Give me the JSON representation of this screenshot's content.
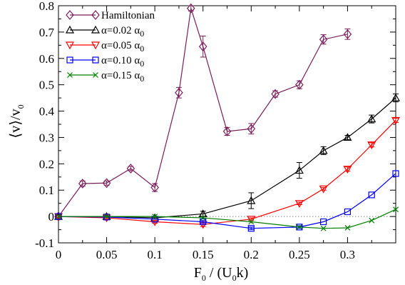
{
  "chart_data": {
    "type": "line",
    "xlabel": "F",
    "xlabel_sub": "0",
    "xlabel_tail": " / (U",
    "xlabel_sub2": "0",
    "xlabel_end": "k)",
    "ylabel_pre": "⟨v⟩/v",
    "ylabel_sub": "0",
    "xlim": [
      0,
      0.35
    ],
    "ylim": [
      -0.1,
      0.8
    ],
    "x_ticks": [
      {
        "v": 0,
        "label": "0"
      },
      {
        "v": 0.05,
        "label": "0.05"
      },
      {
        "v": 0.1,
        "label": "0.1"
      },
      {
        "v": 0.15,
        "label": "0.15"
      },
      {
        "v": 0.2,
        "label": "0.2"
      },
      {
        "v": 0.25,
        "label": "0.25"
      },
      {
        "v": 0.3,
        "label": "0.3"
      }
    ],
    "y_ticks": [
      {
        "v": -0.1,
        "label": "-0.1"
      },
      {
        "v": 0,
        "label": "0"
      },
      {
        "v": 0.1,
        "label": "0.1"
      },
      {
        "v": 0.2,
        "label": "0.2"
      },
      {
        "v": 0.3,
        "label": "0.3"
      },
      {
        "v": 0.4,
        "label": "0.4"
      },
      {
        "v": 0.5,
        "label": "0.5"
      },
      {
        "v": 0.6,
        "label": "0.6"
      },
      {
        "v": 0.7,
        "label": "0.7"
      },
      {
        "v": 0.8,
        "label": "0.8"
      }
    ],
    "zero_line": true,
    "grid": false,
    "legend_position": "top-left",
    "series": [
      {
        "name": "Hamiltonian",
        "label_main": "Hamiltonian",
        "label_sub": "",
        "color": "#7a1e5a",
        "marker": "diamond",
        "x": [
          0,
          0.025,
          0.05,
          0.075,
          0.1,
          0.125,
          0.1375,
          0.15,
          0.175,
          0.2,
          0.225,
          0.25,
          0.275,
          0.3
        ],
        "y": [
          0,
          0.125,
          0.127,
          0.182,
          0.11,
          0.47,
          0.79,
          0.645,
          0.323,
          0.333,
          0.465,
          0.5,
          0.672,
          0.692
        ],
        "err": [
          0.005,
          0.01,
          0.008,
          0.008,
          0.015,
          0.02,
          0.01,
          0.04,
          0.015,
          0.02,
          0.012,
          0.015,
          0.018,
          0.02
        ]
      },
      {
        "name": "α=0.02 α0",
        "label_main": "α=0.02 α",
        "label_sub": "0",
        "color": "#000000",
        "marker": "triangle-up",
        "x": [
          0,
          0.05,
          0.1,
          0.15,
          0.2,
          0.25,
          0.275,
          0.3,
          0.325,
          0.35
        ],
        "y": [
          0,
          0,
          -0.005,
          0.01,
          0.06,
          0.175,
          0.25,
          0.3,
          0.37,
          0.45
        ],
        "err": [
          0.005,
          0.005,
          0.005,
          0.01,
          0.03,
          0.03,
          0.015,
          0.008,
          0.015,
          0.015
        ]
      },
      {
        "name": "α=0.05 α0",
        "label_main": "α=0.05 α",
        "label_sub": "0",
        "color": "#ff0000",
        "marker": "triangle-down",
        "x": [
          0,
          0.05,
          0.1,
          0.15,
          0.2,
          0.25,
          0.275,
          0.3,
          0.325,
          0.35
        ],
        "y": [
          0,
          -0.005,
          -0.02,
          -0.03,
          -0.01,
          0.05,
          0.105,
          0.18,
          0.272,
          0.365
        ],
        "err": [
          0.005,
          0.005,
          0.005,
          0.008,
          0.005,
          0.005,
          0.005,
          0.008,
          0.008,
          0.008
        ]
      },
      {
        "name": "α=0.10 α0",
        "label_main": "α=0.10 α",
        "label_sub": "0",
        "color": "#0000ff",
        "marker": "square",
        "x": [
          0,
          0.05,
          0.1,
          0.15,
          0.2,
          0.25,
          0.275,
          0.3,
          0.325,
          0.35
        ],
        "y": [
          0,
          -0.002,
          -0.01,
          -0.02,
          -0.045,
          -0.04,
          -0.02,
          0.018,
          0.082,
          0.163
        ],
        "err": [
          0.004,
          0.004,
          0.004,
          0.005,
          0.005,
          0.005,
          0.004,
          0.004,
          0.004,
          0.004
        ]
      },
      {
        "name": "α=0.15 α0",
        "label_main": "α=0.15 α",
        "label_sub": "0",
        "color": "#008000",
        "marker": "x",
        "x": [
          0,
          0.05,
          0.1,
          0.15,
          0.2,
          0.25,
          0.275,
          0.3,
          0.325,
          0.35
        ],
        "y": [
          0,
          0,
          0,
          -0.005,
          -0.02,
          -0.04,
          -0.045,
          -0.043,
          -0.015,
          0.027
        ],
        "err": [
          0,
          0,
          0,
          0,
          0,
          0,
          0,
          0,
          0,
          0
        ]
      }
    ]
  }
}
